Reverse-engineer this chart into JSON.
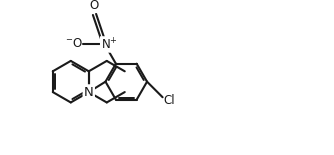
{
  "background_color": "#ffffff",
  "line_color": "#1a1a1a",
  "line_width": 1.5,
  "text_color": "#1a1a1a",
  "font_size": 8.5,
  "figsize": [
    3.34,
    1.55
  ],
  "dpi": 100,
  "xlim": [
    0,
    10
  ],
  "ylim": [
    0,
    4.65
  ]
}
